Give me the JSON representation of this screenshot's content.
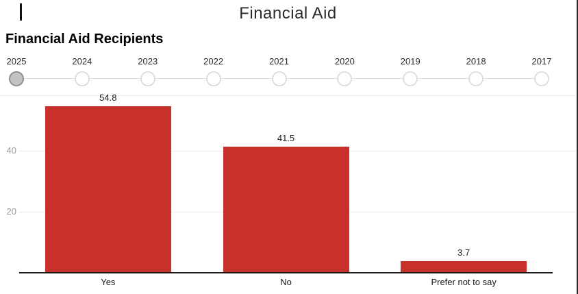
{
  "page": {
    "title": "Financial Aid"
  },
  "chart": {
    "heading": "Financial Aid Recipients"
  },
  "year_slider": {
    "years": [
      "2025",
      "2024",
      "2023",
      "2022",
      "2021",
      "2020",
      "2019",
      "2018",
      "2017"
    ],
    "selected_year": "2025"
  },
  "chart_data": {
    "type": "bar",
    "title": "Financial Aid Recipients",
    "categories": [
      "Yes",
      "No",
      "Prefer not to say"
    ],
    "values": [
      54.8,
      41.5,
      3.7
    ],
    "value_labels": [
      "54.8",
      "41.5",
      "3.7"
    ],
    "xlabel": "",
    "ylabel": "",
    "yticks": [
      20,
      40
    ],
    "ylim": [
      0,
      57
    ],
    "grid": true,
    "legend": "none",
    "bar_color": "#c8302a"
  },
  "colors": {
    "bar": "#c8302a",
    "grid": "#ececec",
    "axis": "#1a1a1a",
    "ytick_text": "#9a9a9a",
    "slider_selected_fill": "#c3c3c3",
    "slider_unselected_border": "#dedede"
  }
}
